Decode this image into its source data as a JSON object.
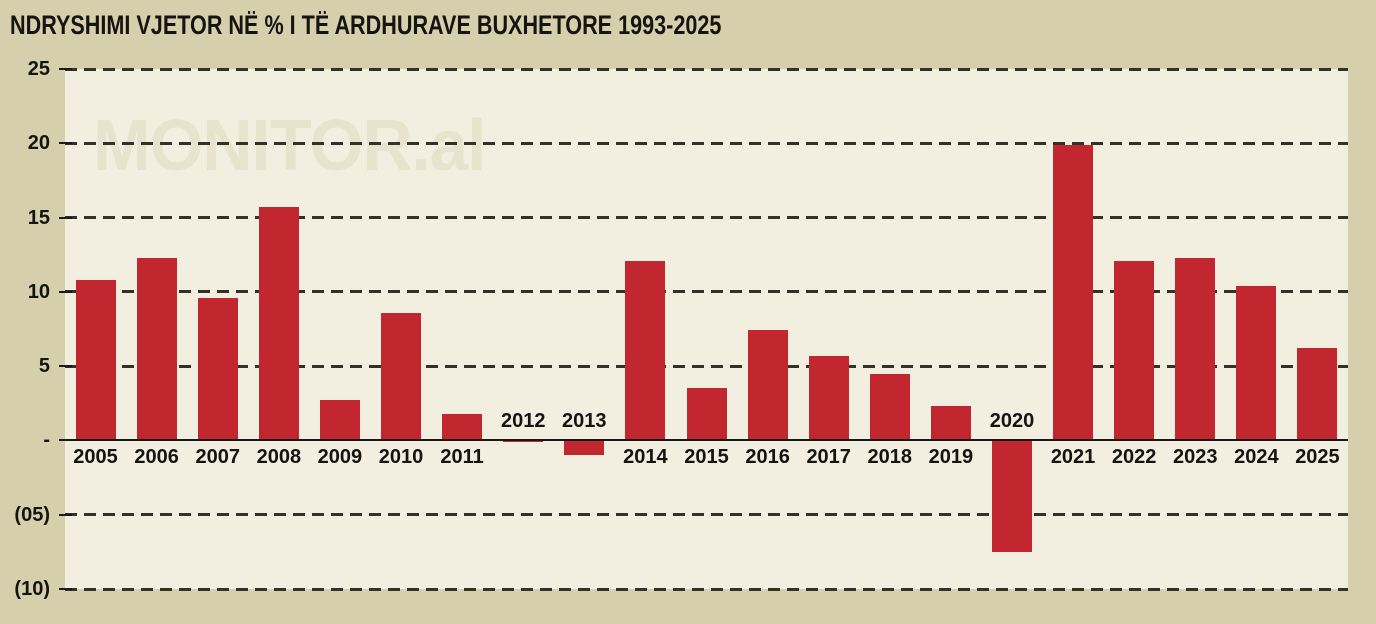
{
  "page": {
    "title": "NDRYSHIMI VJETOR NË % I TË ARDHURAVE BUXHETORE 1993-2025",
    "watermark": "MONITOR.al"
  },
  "colors": {
    "background": "#d5d0ab",
    "plot_background": "#f2efe1",
    "bar": "#c2262e",
    "grid": "#34302a",
    "text": "#161412",
    "watermark": "#e8e3cc"
  },
  "chart_data": {
    "type": "bar",
    "title": "NDRYSHIMI VJETOR NË % I TË ARDHURAVE BUXHETORE 1993-2025",
    "ylabel": "",
    "xlabel": "",
    "categories": [
      "2005",
      "2006",
      "2007",
      "2008",
      "2009",
      "2010",
      "2011",
      "2012",
      "2013",
      "2014",
      "2015",
      "2016",
      "2017",
      "2018",
      "2019",
      "2020",
      "2021",
      "2022",
      "2023",
      "2024",
      "2025"
    ],
    "values": [
      10.8,
      12.3,
      9.6,
      15.7,
      2.7,
      8.6,
      1.8,
      -0.1,
      -1.0,
      12.1,
      3.5,
      7.4,
      5.7,
      4.5,
      2.3,
      -7.5,
      19.9,
      12.1,
      12.3,
      10.4,
      6.2
    ],
    "ylim": [
      -10,
      25
    ],
    "yticks": [
      {
        "value": 25,
        "label": "25"
      },
      {
        "value": 20,
        "label": "20"
      },
      {
        "value": 15,
        "label": "15"
      },
      {
        "value": 10,
        "label": "10"
      },
      {
        "value": 5,
        "label": "5"
      },
      {
        "value": 0,
        "label": "-"
      },
      {
        "value": -5,
        "label": "(05)"
      },
      {
        "value": -10,
        "label": "(10)"
      }
    ],
    "grid": "horizontal dashed, solid axis line at zero",
    "legend": "none",
    "negative_year_labels_above_axis": [
      "2012",
      "2013",
      "2020"
    ],
    "bar_color": "#c2262e",
    "watermark": "MONITOR.al"
  }
}
